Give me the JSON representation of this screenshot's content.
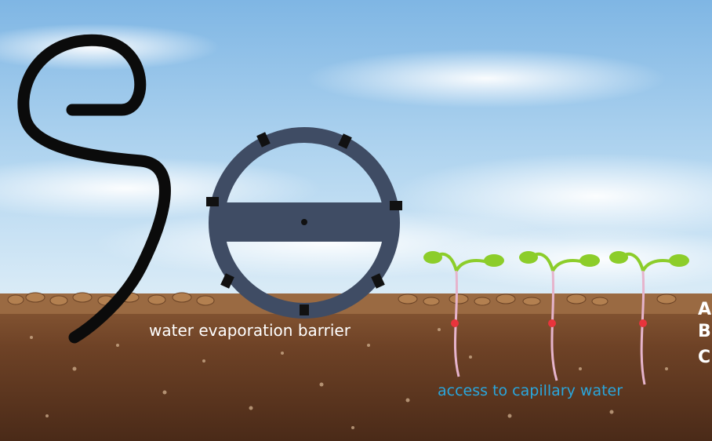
{
  "labels": {
    "barrier": "water evaporation barrier",
    "capillary": "access to capillary water"
  },
  "soil_layers": [
    "A",
    "B",
    "C"
  ],
  "colors": {
    "sky": "#9cc8ea",
    "soil_top": "#8a5a36",
    "soil_deep": "#5a3420",
    "wheel": "#3f4c64",
    "hose": "#0b0b0b",
    "sprout": "#8ccd2a",
    "root": "#e6b4cc",
    "root_marker": "#e8343c",
    "capillary_label": "#2aa6dc"
  },
  "icons": [
    "hose-icon",
    "wheel-icon",
    "sprout-icon"
  ]
}
